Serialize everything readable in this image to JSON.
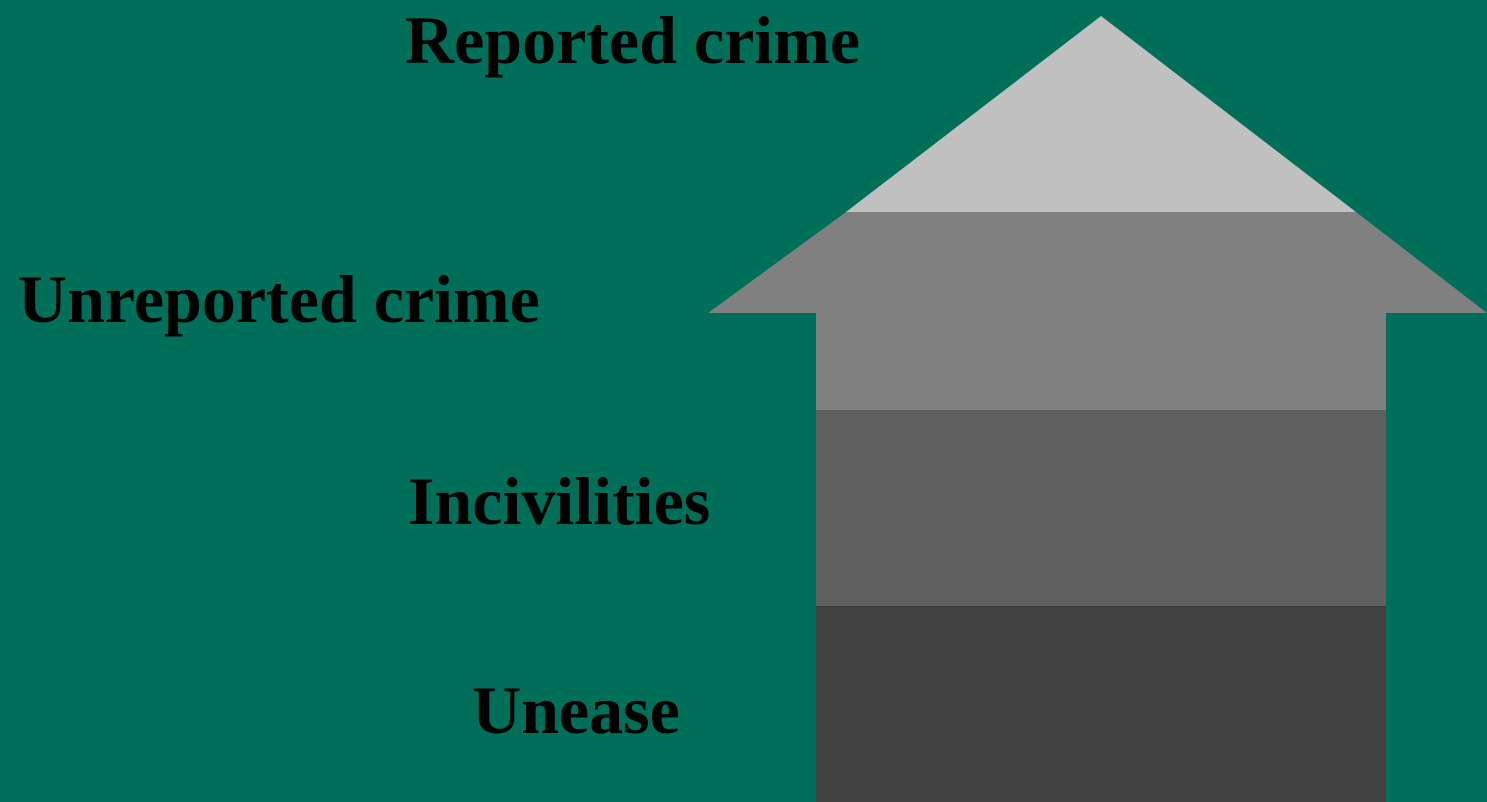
{
  "diagram": {
    "levels": [
      {
        "id": "reported",
        "label": "Reported crime",
        "color": "#c0c0c0"
      },
      {
        "id": "unreported",
        "label": "Unreported crime",
        "color": "#808080"
      },
      {
        "id": "incivilities",
        "label": "Incivilities",
        "color": "#606060"
      },
      {
        "id": "unease",
        "label": "Unease",
        "color": "#404040"
      }
    ],
    "background_color": "#006f59",
    "text_color": "#000000"
  }
}
